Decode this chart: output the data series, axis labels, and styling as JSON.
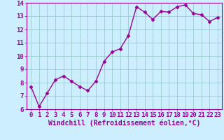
{
  "x": [
    0,
    1,
    2,
    3,
    4,
    5,
    6,
    7,
    8,
    9,
    10,
    11,
    12,
    13,
    14,
    15,
    16,
    17,
    18,
    19,
    20,
    21,
    22,
    23
  ],
  "y": [
    7.7,
    6.2,
    7.2,
    8.2,
    8.5,
    8.1,
    7.7,
    7.4,
    8.1,
    9.6,
    10.3,
    10.55,
    11.55,
    13.7,
    13.3,
    12.75,
    13.35,
    13.3,
    13.7,
    13.85,
    13.2,
    13.1,
    12.6,
    12.9
  ],
  "line_color": "#990099",
  "marker": "D",
  "markersize": 2.5,
  "linewidth": 1.0,
  "bg_color": "#cceeff",
  "grid_color": "#99cccc",
  "xlabel": "Windchill (Refroidissement éolien,°C)",
  "xlabel_color": "#990099",
  "xlabel_fontsize": 7,
  "tick_color": "#990099",
  "tick_fontsize": 6.5,
  "ylim": [
    6,
    14
  ],
  "yticks": [
    6,
    7,
    8,
    9,
    10,
    11,
    12,
    13,
    14
  ],
  "xticks": [
    0,
    1,
    2,
    3,
    4,
    5,
    6,
    7,
    8,
    9,
    10,
    11,
    12,
    13,
    14,
    15,
    16,
    17,
    18,
    19,
    20,
    21,
    22,
    23
  ],
  "xlim": [
    -0.5,
    23.5
  ]
}
